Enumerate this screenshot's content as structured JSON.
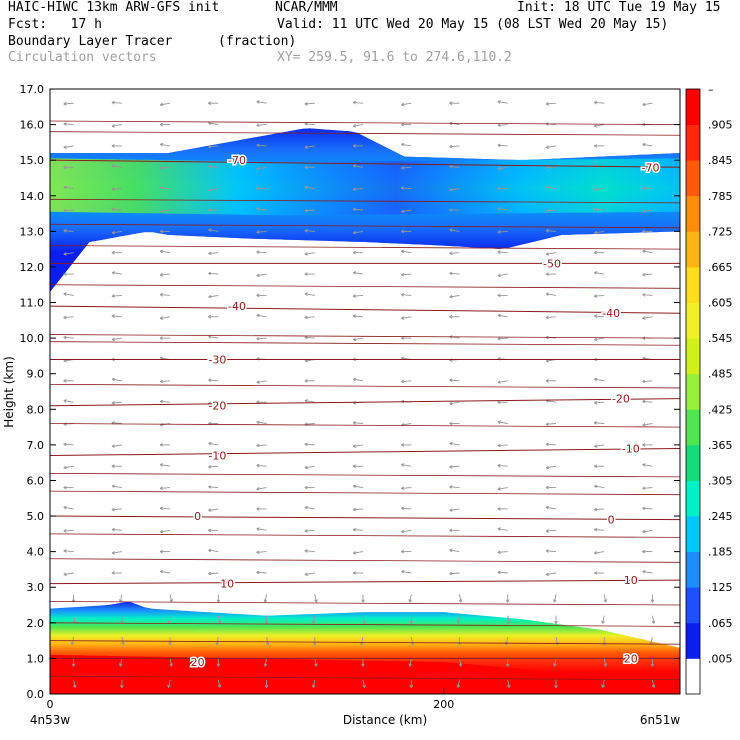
{
  "header": {
    "title": "HAIC-HIWC 13km ARW-GFS init",
    "center": "NCAR/MMM",
    "init": "Init: 18 UTC Tue 19 May 15",
    "fcst": "Fcst:   17 h",
    "valid": "Valid: 11 UTC Wed 20 May 15 (08 LST Wed 20 May 15)",
    "field": "Boundary Layer Tracer",
    "units": "(fraction)",
    "vectors": "Circulation vectors",
    "xy": "XY= 259.5, 91.6 to 274.6,110.2"
  },
  "colors": {
    "bands": [
      "#ffffff",
      "#0a1ef0",
      "#1e50ff",
      "#1e8cff",
      "#00c8ff",
      "#00f0c8",
      "#14dc78",
      "#50e650",
      "#96f03c",
      "#d2f01e",
      "#f0f028",
      "#ffdc1e",
      "#ffb414",
      "#ff8c0a",
      "#ff5a0a",
      "#ff280a",
      "#ff0000"
    ],
    "contour": "#8b1a1a",
    "vector": "#969696"
  },
  "chart_data": {
    "type": "heatmap",
    "title": "Boundary Layer Tracer",
    "units": "(fraction)",
    "ylabel": "Height (km)",
    "xlabel": "Distance (km)",
    "xlim": [
      0,
      320
    ],
    "ylim": [
      0,
      17
    ],
    "x_ticks": [
      0,
      200
    ],
    "y_ticks": [
      "0.0",
      "1.0",
      "2.0",
      "3.0",
      "4.0",
      "5.0",
      "6.0",
      "7.0",
      "8.0",
      "9.0",
      "10.0",
      "11.0",
      "12.0",
      "13.0",
      "14.0",
      "15.0",
      "16.0",
      "17.0"
    ],
    "x_endpoint_labels": [
      "4n53w",
      "6n51w"
    ],
    "colorbar_labels": [
      ".005",
      ".065",
      ".125",
      ".185",
      ".245",
      ".305",
      ".365",
      ".425",
      ".485",
      ".545",
      ".605",
      ".665",
      ".725",
      ".785",
      ".845",
      ".905",
      "–"
    ],
    "temperature_contours": [
      {
        "label": "-70",
        "y_left": 15.0,
        "y_right": 14.8
      },
      {
        "label": "-50",
        "y_left": 12.1,
        "y_right": 12.1
      },
      {
        "label": "-40",
        "y_left": 10.9,
        "y_right": 10.7
      },
      {
        "label": "-30",
        "y_left": 9.4,
        "y_right": 9.4
      },
      {
        "label": "-20",
        "y_left": 8.1,
        "y_right": 8.3
      },
      {
        "label": "-10",
        "y_left": 6.7,
        "y_right": 6.9
      },
      {
        "label": "0",
        "y_left": 5.0,
        "y_right": 4.9
      },
      {
        "label": "10",
        "y_left": 3.1,
        "y_right": 3.2
      },
      {
        "label": "20",
        "y_left": 1.0,
        "y_right": 1.0
      }
    ],
    "contour_labels": [
      {
        "text": "-70",
        "x": 95,
        "y": 15.0
      },
      {
        "text": "-70",
        "x": 305,
        "y": 14.8
      },
      {
        "text": "-50",
        "x": 255,
        "y": 12.1
      },
      {
        "text": "-40",
        "x": 95,
        "y": 10.9
      },
      {
        "text": "-40",
        "x": 285,
        "y": 10.7
      },
      {
        "text": "-30",
        "x": 85,
        "y": 9.4
      },
      {
        "text": "-20",
        "x": 85,
        "y": 8.1
      },
      {
        "text": "-20",
        "x": 290,
        "y": 8.3
      },
      {
        "text": "-10",
        "x": 85,
        "y": 6.7
      },
      {
        "text": "-10",
        "x": 295,
        "y": 6.9
      },
      {
        "text": "0",
        "x": 75,
        "y": 5.0
      },
      {
        "text": "0",
        "x": 285,
        "y": 4.9
      },
      {
        "text": "10",
        "x": 90,
        "y": 3.1
      },
      {
        "text": "10",
        "x": 295,
        "y": 3.2
      },
      {
        "text": "20",
        "x": 75,
        "y": 0.9
      },
      {
        "text": "20",
        "x": 295,
        "y": 1.0
      }
    ],
    "tracer_upper_layer": {
      "top": [
        [
          0,
          15.2
        ],
        [
          60,
          15.2
        ],
        [
          90,
          15.5
        ],
        [
          130,
          15.9
        ],
        [
          155,
          15.8
        ],
        [
          180,
          15.1
        ],
        [
          240,
          15.0
        ],
        [
          320,
          15.2
        ]
      ],
      "bottom": [
        [
          0,
          11.3
        ],
        [
          20,
          12.7
        ],
        [
          50,
          13.0
        ],
        [
          60,
          12.9
        ],
        [
          100,
          12.8
        ],
        [
          160,
          12.7
        ],
        [
          200,
          12.6
        ],
        [
          230,
          12.5
        ],
        [
          260,
          12.9
        ],
        [
          320,
          13.0
        ]
      ],
      "core_center": [
        [
          0,
          14.3
        ],
        [
          120,
          14.2
        ],
        [
          320,
          14.3
        ]
      ],
      "max_value": 0.5
    },
    "tracer_boundary_layer": {
      "top": [
        [
          0,
          2.4
        ],
        [
          30,
          2.5
        ],
        [
          40,
          2.6
        ],
        [
          50,
          2.4
        ],
        [
          110,
          2.2
        ],
        [
          160,
          2.3
        ],
        [
          200,
          2.3
        ],
        [
          240,
          2.1
        ],
        [
          280,
          1.8
        ],
        [
          320,
          1.3
        ]
      ],
      "full_value_depth": [
        [
          0,
          1.1
        ],
        [
          100,
          1.0
        ],
        [
          200,
          0.9
        ],
        [
          320,
          0.3
        ]
      ],
      "max_value": 1.0
    }
  }
}
